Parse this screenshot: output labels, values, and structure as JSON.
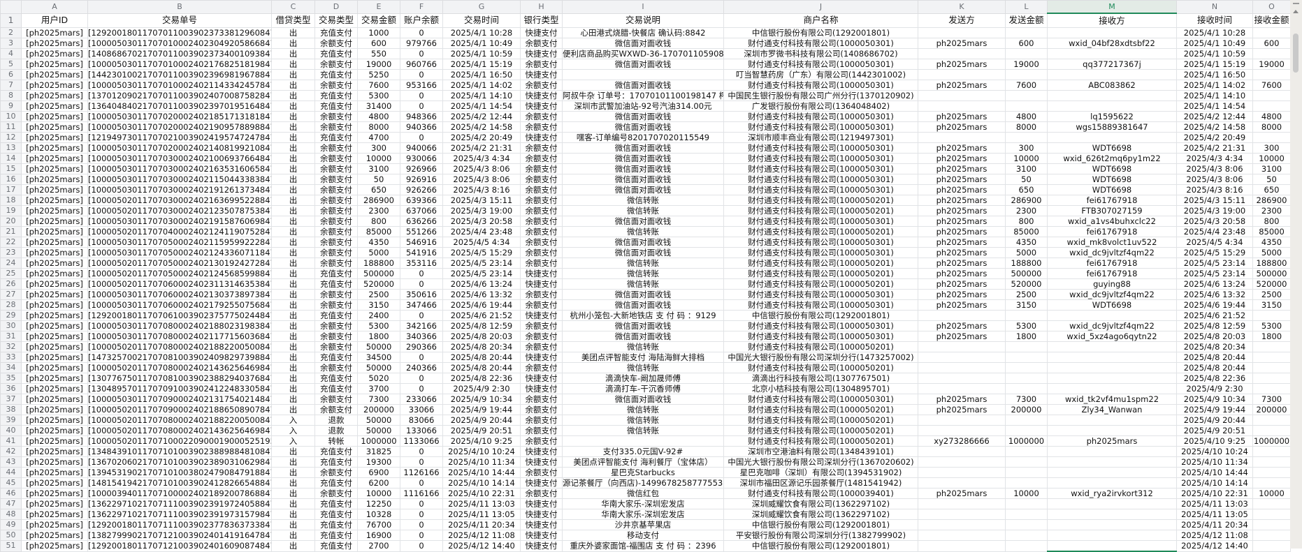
{
  "sheet": {
    "selected_column": "M",
    "accent_color": "#1f8a5a",
    "column_letters": [
      "A",
      "B",
      "C",
      "D",
      "E",
      "F",
      "G",
      "H",
      "I",
      "J",
      "K",
      "L",
      "M",
      "N",
      "O"
    ],
    "headers": [
      "用户ID",
      "交易单号",
      "借贷类型",
      "交易类型",
      "交易金额",
      "账户余额",
      "交易时间",
      "银行类型",
      "交易说明",
      "商户名称",
      "发送方",
      "发送金额",
      "接收方",
      "接收时间",
      "接收金额"
    ],
    "rows": [
      [
        "[ph2025mars]",
        "[129200180117070110039023733812960847]",
        "出",
        "充值支付",
        "1000",
        "0",
        "2025/4/1 10:28",
        "快捷支付",
        "心田港式烧腊-快餐店 确认码:8842",
        "中信银行股份有限公司(1292001801)",
        "",
        "",
        "",
        "2025/4/1 10:28",
        ""
      ],
      [
        "[ph2025mars]",
        "[100005030117070100024023049205866847]",
        "出",
        "余额支付",
        "600",
        "979766",
        "2025/4/1 10:49",
        "余额支付",
        "微信面对面收钱",
        "财付通支付科技有限公司(1000050301)",
        "ph2025mars",
        "600",
        "wxid_04bf28xdtsbf22",
        "2025/4/1 10:49",
        "600"
      ],
      [
        "[ph2025mars]",
        "[140868670217070110039023734001093847]",
        "出",
        "充值支付",
        "550",
        "0",
        "2025/4/1 10:59",
        "快捷支付",
        "便利店商品购买WXWD-36-17070110590864",
        "深圳市罗微书科技有限公司(1408686702)",
        "",
        "",
        "",
        "2025/4/1 10:59",
        ""
      ],
      [
        "[ph2025mars]",
        "[100005030117070100024021768251819847]",
        "出",
        "余额支付",
        "19000",
        "960766",
        "2025/4/1 15:19",
        "余额支付",
        "微信面对面收钱",
        "财付通支付科技有限公司(1000050301)",
        "ph2025mars",
        "19000",
        "qq377217367j",
        "2025/4/1 15:19",
        "19000"
      ],
      [
        "[ph2025mars]",
        "[144230100217070110039023969819678847]",
        "出",
        "充值支付",
        "5250",
        "0",
        "2025/4/1 16:50",
        "快捷支付",
        "",
        "叮当智慧药房（广东）有限公司(1442301002)",
        "",
        "",
        "",
        "2025/4/1 16:50",
        ""
      ],
      [
        "[ph2025mars]",
        "[100005030117070100024021143342457847]",
        "出",
        "余额支付",
        "7600",
        "953166",
        "2025/4/1 14:02",
        "余额支付",
        "微信面对面收钱",
        "财付通支付科技有限公司(1000050301)",
        "ph2025mars",
        "7600",
        "ABC083862",
        "2025/4/1 14:02",
        "7600"
      ],
      [
        "[ph2025mars]",
        "[137012090217070110039024070087582847]",
        "出",
        "充值支付",
        "5300",
        "0",
        "2025/4/1 14:10",
        "快捷支付",
        "阿叔牛杂 订单号：17070101100198147 榨码",
        "中国民生银行股份有限公司广州分行(1370120902)",
        "",
        "",
        "",
        "2025/4/1 14:10",
        ""
      ],
      [
        "[ph2025mars]",
        "[136404840217070110039023970195164847]",
        "出",
        "充值支付",
        "31400",
        "0",
        "2025/4/1 14:54",
        "快捷支付",
        "深圳市武警加油站-92号汽油314.00元",
        "广发银行股份有限公司(1364048402)",
        "",
        "",
        "",
        "2025/4/1 14:54",
        ""
      ],
      [
        "[ph2025mars]",
        "[100005030117070200024021851713181847]",
        "出",
        "余额支付",
        "4800",
        "948366",
        "2025/4/2 12:44",
        "余额支付",
        "微信面对面收钱",
        "财付通支付科技有限公司(1000050301)",
        "ph2025mars",
        "4800",
        "lq1595622",
        "2025/4/2 12:44",
        "4800"
      ],
      [
        "[ph2025mars]",
        "[100005030117070200024021909578898847]",
        "出",
        "余额支付",
        "8000",
        "940366",
        "2025/4/2 14:58",
        "余额支付",
        "微信面对面收钱",
        "财付通支付科技有限公司(1000050301)",
        "ph2025mars",
        "8000",
        "wgs15889381647",
        "2025/4/2 14:58",
        "8000"
      ],
      [
        "[ph2025mars]",
        "[121949730117070210039024195747247847]",
        "出",
        "充值支付",
        "4700",
        "0",
        "2025/4/2 20:49",
        "快捷支付",
        "嘿客-订单编号8201707020115549",
        "深圳市顺丰商业有限公司(1219497301)",
        "",
        "",
        "",
        "2025/4/2 20:49",
        ""
      ],
      [
        "[ph2025mars]",
        "[100005030117070200024021408199210847]",
        "出",
        "余额支付",
        "300",
        "940066",
        "2025/4/2 21:31",
        "余额支付",
        "微信面对面收钱",
        "财付通支付科技有限公司(1000050301)",
        "ph2025mars",
        "300",
        "WDT6698",
        "2025/4/2 21:31",
        "300"
      ],
      [
        "[ph2025mars]",
        "[100005030117070300024021006937664847]",
        "出",
        "余额支付",
        "10000",
        "930066",
        "2025/4/3 4:34",
        "余额支付",
        "微信面对面收钱",
        "财付通支付科技有限公司(1000050301)",
        "ph2025mars",
        "10000",
        "wxid_626t2mq6py1m22",
        "2025/4/3 4:34",
        "10000"
      ],
      [
        "[ph2025mars]",
        "[100005030117070300024021635316065847]",
        "出",
        "余额支付",
        "3100",
        "926966",
        "2025/4/3 8:06",
        "余额支付",
        "微信面对面收钱",
        "财付通支付科技有限公司(1000050301)",
        "ph2025mars",
        "3100",
        "WDT6698",
        "2025/4/3 8:06",
        "3100"
      ],
      [
        "[ph2025mars]",
        "[100005030117070300024021150443383847]",
        "出",
        "余额支付",
        "50",
        "926916",
        "2025/4/3 8:06",
        "余额支付",
        "微信面对面收钱",
        "财付通支付科技有限公司(1000050301)",
        "ph2025mars",
        "50",
        "WDT6698",
        "2025/4/3 8:06",
        "50"
      ],
      [
        "[ph2025mars]",
        "[100005030117070300024021912613734847]",
        "出",
        "余额支付",
        "650",
        "926266",
        "2025/4/3 8:16",
        "余额支付",
        "微信面对面收钱",
        "财付通支付科技有限公司(1000050301)",
        "ph2025mars",
        "650",
        "WDT6698",
        "2025/4/3 8:16",
        "650"
      ],
      [
        "[ph2025mars]",
        "[100005020117070300024021636995228847]",
        "出",
        "余额支付",
        "286900",
        "639366",
        "2025/4/3 15:11",
        "余额支付",
        "微信转账",
        "财付通支付科技有限公司(1000050201)",
        "ph2025mars",
        "286900",
        "fei61767918",
        "2025/4/3 15:11",
        "286900"
      ],
      [
        "[ph2025mars]",
        "[100005020117070300024021235078753847]",
        "出",
        "余额支付",
        "2300",
        "637066",
        "2025/4/3 19:00",
        "余额支付",
        "微信转账",
        "财付通支付科技有限公司(1000050201)",
        "ph2025mars",
        "2300",
        "FTB307027159",
        "2025/4/3 19:00",
        "2300"
      ],
      [
        "[ph2025mars]",
        "[100005030117070300024021915876069847]",
        "出",
        "余额支付",
        "800",
        "636266",
        "2025/4/3 20:58",
        "余额支付",
        "微信面对面收钱",
        "财付通支付科技有限公司(1000050301)",
        "ph2025mars",
        "800",
        "wxid_a1vs4buhxclc22",
        "2025/4/3 20:58",
        "800"
      ],
      [
        "[ph2025mars]",
        "[100005020117070400024021241190752847]",
        "出",
        "余额支付",
        "85000",
        "551266",
        "2025/4/4 23:48",
        "余额支付",
        "微信转账",
        "财付通支付科技有限公司(1000050201)",
        "ph2025mars",
        "85000",
        "fei61767918",
        "2025/4/4 23:48",
        "85000"
      ],
      [
        "[ph2025mars]",
        "[100005030117070500024021159599222847]",
        "出",
        "余额支付",
        "4350",
        "546916",
        "2025/4/5 4:34",
        "余额支付",
        "微信面对面收钱",
        "财付通支付科技有限公司(1000050301)",
        "ph2025mars",
        "4350",
        "wxid_mk8volct1uv522",
        "2025/4/5 4:34",
        "4350"
      ],
      [
        "[ph2025mars]",
        "[100005030117070500024021243360711847]",
        "出",
        "余额支付",
        "5000",
        "541916",
        "2025/4/5 15:29",
        "余额支付",
        "微信面对面收钱",
        "财付通支付科技有限公司(1000050301)",
        "ph2025mars",
        "5000",
        "wxid_dc9jvltzf4qm22",
        "2025/4/5 15:29",
        "5000"
      ],
      [
        "[ph2025mars]",
        "[100005020117070500024021301924272847]",
        "出",
        "余额支付",
        "188800",
        "353116",
        "2025/4/5 23:14",
        "余额支付",
        "微信转账",
        "财付通支付科技有限公司(1000050201)",
        "ph2025mars",
        "188800",
        "fei61767918",
        "2025/4/5 23:14",
        "188800"
      ],
      [
        "[ph2025mars]",
        "[100005020117070500024021245685998847]",
        "出",
        "充值支付",
        "500000",
        "0",
        "2025/4/5 23:14",
        "快捷支付",
        "微信转账",
        "财付通支付科技有限公司(1000050201)",
        "ph2025mars",
        "500000",
        "fei61767918",
        "2025/4/5 23:14",
        "500000"
      ],
      [
        "[ph2025mars]",
        "[100005020117070600024023113146353847]",
        "出",
        "充值支付",
        "520000",
        "0",
        "2025/4/6 13:24",
        "快捷支付",
        "微信转账",
        "财付通支付科技有限公司(1000050201)",
        "ph2025mars",
        "520000",
        "guying88",
        "2025/4/6 13:24",
        "520000"
      ],
      [
        "[ph2025mars]",
        "[100005030117070600024021303738973847]",
        "出",
        "余额支付",
        "2500",
        "350616",
        "2025/4/6 13:32",
        "余额支付",
        "微信面对面收钱",
        "财付通支付科技有限公司(1000050301)",
        "ph2025mars",
        "2500",
        "wxid_dc9jvltzf4qm22",
        "2025/4/6 13:32",
        "2500"
      ],
      [
        "[ph2025mars]",
        "[100005030117070600024021792550756847]",
        "出",
        "余额支付",
        "3150",
        "347466",
        "2025/4/6 19:44",
        "余额支付",
        "微信面对面收钱",
        "财付通支付科技有限公司(1000050301)",
        "ph2025mars",
        "3150",
        "WDT6698",
        "2025/4/6 19:44",
        "3150"
      ],
      [
        "[ph2025mars]",
        "[129200180117070610039023757750244847]",
        "出",
        "充值支付",
        "2400",
        "0",
        "2025/4/6 21:52",
        "快捷支付",
        "杭州小笼包-大新地铁店 支 付 码 ：9129",
        "中信银行股份有限公司(1292001801)",
        "",
        "",
        "",
        "2025/4/6 21:52",
        ""
      ],
      [
        "[ph2025mars]",
        "[100005030117070800024021880231983847]",
        "出",
        "余额支付",
        "5300",
        "342166",
        "2025/4/8 12:59",
        "余额支付",
        "微信面对面收钱",
        "财付通支付科技有限公司(1000050301)",
        "ph2025mars",
        "5300",
        "wxid_dc9jvltzf4qm22",
        "2025/4/8 12:59",
        "5300"
      ],
      [
        "[ph2025mars]",
        "[100005030117070800024021177156036847]",
        "出",
        "余额支付",
        "1800",
        "340366",
        "2025/4/8 20:03",
        "余额支付",
        "微信面对面收钱",
        "财付通支付科技有限公司(1000050301)",
        "ph2025mars",
        "1800",
        "wxid_5xz4ago6qytn22",
        "2025/4/8 20:03",
        "1800"
      ],
      [
        "[ph2025mars]",
        "[100005020117070800024021882200500847]",
        "出",
        "余额支付",
        "50000",
        "290366",
        "2025/4/8 20:34",
        "余额支付",
        "微信转账",
        "财付通支付科技有限公司(1000050201)",
        "",
        "",
        "",
        "2025/4/8 20:34",
        ""
      ],
      [
        "[ph2025mars]",
        "[147325700217070810039024098297398847]",
        "出",
        "充值支付",
        "34500",
        "0",
        "2025/4/8 20:44",
        "快捷支付",
        "美团点评智能支付 海陆海鲜大排档",
        "中国光大银行股份有限公司深圳分行(1473257002)",
        "",
        "",
        "",
        "2025/4/8 20:44",
        ""
      ],
      [
        "[ph2025mars]",
        "[100005020117070800024021436256469847]",
        "出",
        "余额支付",
        "50000",
        "240366",
        "2025/4/8 20:44",
        "余额支付",
        "微信转账",
        "财付通支付科技有限公司(1000050201)",
        "",
        "",
        "",
        "2025/4/8 20:44",
        ""
      ],
      [
        "[ph2025mars]",
        "[130776750117070810039023882940376847]",
        "出",
        "充值支付",
        "5020",
        "0",
        "2025/4/8 22:36",
        "快捷支付",
        "滴滴快车-阚加晟师傅",
        "滴滴出行科技有限公司(1307767501)",
        "",
        "",
        "",
        "2025/4/8 22:36",
        ""
      ],
      [
        "[ph2025mars]",
        "[130489570117070910039024122483305847]",
        "出",
        "充值支付",
        "3700",
        "0",
        "2025/4/9 2:30",
        "快捷支付",
        "滴滴打车-干沉香师傅",
        "北京小桔科技有限公司(1304895701)",
        "",
        "",
        "",
        "2025/4/9 2:30",
        ""
      ],
      [
        "[ph2025mars]",
        "[100005030117070900024021317540214847]",
        "出",
        "余额支付",
        "7300",
        "233066",
        "2025/4/9 10:34",
        "余额支付",
        "微信面对面收钱",
        "财付通支付科技有限公司(1000050301)",
        "ph2025mars",
        "7300",
        "wxid_tk2vf4mu1spm22",
        "2025/4/9 10:34",
        "7300"
      ],
      [
        "[ph2025mars]",
        "[100005020117070900024021886508907847]",
        "出",
        "余额支付",
        "200000",
        "33066",
        "2025/4/9 19:44",
        "余额支付",
        "微信转账",
        "财付通支付科技有限公司(1000050201)",
        "ph2025mars",
        "200000",
        "Zly34_Wanwan",
        "2025/4/9 19:44",
        "200000"
      ],
      [
        "[ph2025mars]",
        "[100005020117070800024021882200500847]",
        "入",
        "退款",
        "50000",
        "83066",
        "2025/4/9 20:44",
        "余额支付",
        "微信转账",
        "财付通支付科技有限公司(1000050201)",
        "",
        "",
        "",
        "2025/4/9 20:44",
        ""
      ],
      [
        "[ph2025mars]",
        "[100005020117070800024021436256469847]",
        "入",
        "退款",
        "50000",
        "133066",
        "2025/4/9 20:51",
        "余额支付",
        "微信转账",
        "财付通支付科技有限公司(1000050201)",
        "",
        "",
        "",
        "2025/4/9 20:51",
        ""
      ],
      [
        "[ph2025mars]",
        "[1000050201170710002209000190005251956847]",
        "入",
        "转帐",
        "1000000",
        "1133066",
        "2025/4/10 9:25",
        "余额支付",
        "",
        "财付通支付科技有限公司(1000050201)",
        "xy273286666",
        "1000000",
        "ph2025mars",
        "2025/4/10 9:25",
        "1000000"
      ],
      [
        "[ph2025mars]",
        "[134843910117071010039023889884810847]",
        "出",
        "充值支付",
        "31825",
        "0",
        "2025/4/10 10:24",
        "快捷支付",
        "支付335.0元国V-92#",
        "深圳市空港油料有限公司(1348439101)",
        "",
        "",
        "",
        "2025/4/10 10:24",
        ""
      ],
      [
        "[ph2025mars]",
        "[136702060217071010039023890310629847]",
        "出",
        "充值支付",
        "19300",
        "0",
        "2025/4/10 11:34",
        "快捷支付",
        "美团点评智能支付 海利餐厅（宝体店）",
        "中国光大银行股份有限公司深圳分行(1367020602)",
        "",
        "",
        "",
        "2025/4/10 11:34",
        ""
      ],
      [
        "[ph2025mars]",
        "[139453190217071010038024790847918847]",
        "出",
        "余额支付",
        "6900",
        "1126166",
        "2025/4/10 14:44",
        "余额支付",
        "星巴克Starbucks",
        "星巴克咖啡（深圳）有限公司(1394531902)",
        "",
        "",
        "",
        "2025/4/10 14:44",
        ""
      ],
      [
        "[ph2025mars]",
        "[148154194217071010039024128266548847]",
        "出",
        "充值支付",
        "6200",
        "0",
        "2025/4/10 14:14",
        "快捷支付",
        "源记茶餐厅（向西店)-149967825877755352",
        "深圳市福田区源记乐园茶餐厅(1481541942)",
        "",
        "",
        "",
        "2025/4/10 14:14",
        ""
      ],
      [
        "[ph2025mars]",
        "[100003940117071000024021892007868847]",
        "出",
        "余额支付",
        "10000",
        "1116166",
        "2025/4/10 22:31",
        "余额支付",
        "微信红包",
        "财付通支付科技有限公司(1000039401)",
        "ph2025mars",
        "10000",
        "wxid_rya2irvkort312",
        "2025/4/10 22:31",
        "10000"
      ],
      [
        "[ph2025mars]",
        "[136229710217071110039023919724058847]",
        "出",
        "充值支付",
        "12250",
        "0",
        "2025/4/11 13:03",
        "快捷支付",
        "华南大家乐-深圳宏发店",
        "深圳威耀饮食有限公司(1362297102)",
        "",
        "",
        "",
        "2025/4/11 13:03",
        ""
      ],
      [
        "[ph2025mars]",
        "[136229710217071110039023919731579847]",
        "出",
        "充值支付",
        "10328",
        "0",
        "2025/4/11 13:05",
        "快捷支付",
        "华南大家乐-深圳宏发店",
        "深圳威耀饮食有限公司(1362297102)",
        "",
        "",
        "",
        "2025/4/11 13:05",
        ""
      ],
      [
        "[ph2025mars]",
        "[129200180117071110039023778363733847]",
        "出",
        "充值支付",
        "76700",
        "0",
        "2025/4/11 20:34",
        "快捷支付",
        "沙井京基苹果店",
        "中信银行股份有限公司(1292001801)",
        "",
        "",
        "",
        "2025/4/11 20:34",
        ""
      ],
      [
        "[ph2025mars]",
        "[138279990217071210039024014191647847]",
        "出",
        "充值支付",
        "16900",
        "0",
        "2025/4/12 11:08",
        "快捷支付",
        "移动支付",
        "平安银行股份有限公司深圳分行(1382799902)",
        "",
        "",
        "",
        "2025/4/12 11:08",
        ""
      ],
      [
        "[ph2025mars]",
        "[129200180117071210039024016090874847]",
        "出",
        "充值支付",
        "2700",
        "0",
        "2025/4/12 14:40",
        "快捷支付",
        "重庆外婆家面馆-福围店 支 付 码 ：2396",
        "中信银行股份有限公司(1292001801)",
        "",
        "",
        "",
        "2025/4/12 14:40",
        ""
      ]
    ]
  }
}
